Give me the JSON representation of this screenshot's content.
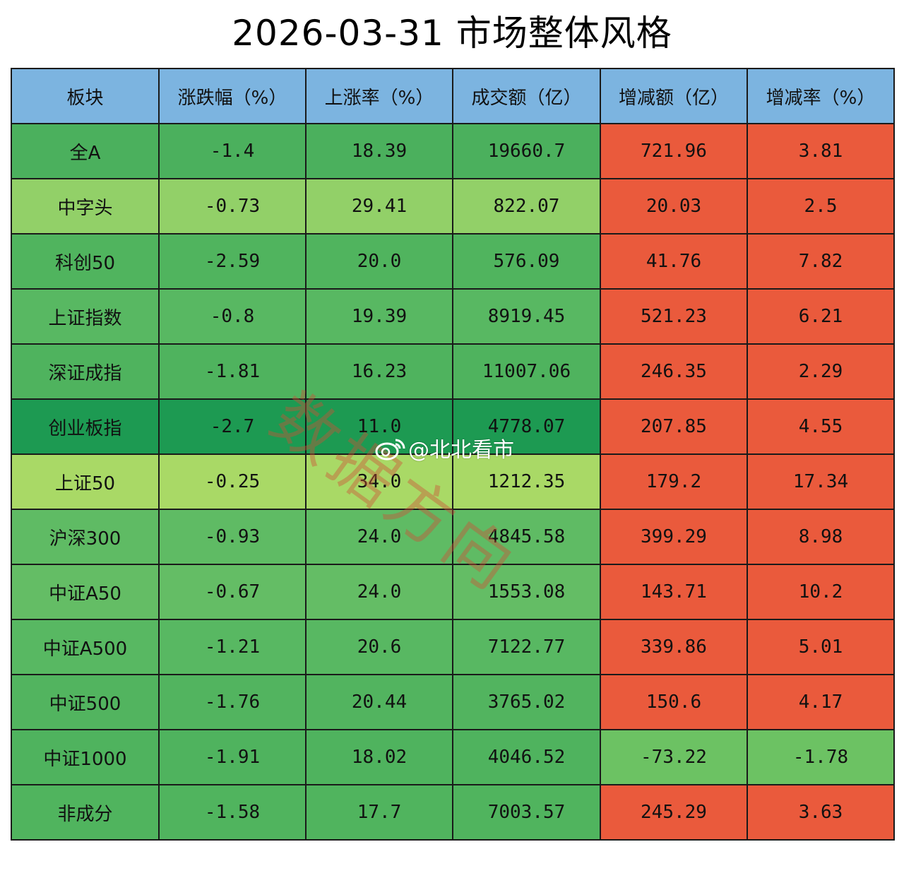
{
  "chart_data": {
    "type": "table",
    "title": "2026-03-31  市场整体风格",
    "columns": [
      "板块",
      "涨跌幅（%）",
      "上涨率（%）",
      "成交额（亿）",
      "增减额（亿）",
      "增减率（%）"
    ],
    "rows": [
      [
        "全A",
        "-1.4",
        "18.39",
        "19660.7",
        "721.96",
        "3.81"
      ],
      [
        "中字头",
        "-0.73",
        "29.41",
        "822.07",
        "20.03",
        "2.5"
      ],
      [
        "科创50",
        "-2.59",
        "20.0",
        "576.09",
        "41.76",
        "7.82"
      ],
      [
        "上证指数",
        "-0.8",
        "19.39",
        "8919.45",
        "521.23",
        "6.21"
      ],
      [
        "深证成指",
        "-1.81",
        "16.23",
        "11007.06",
        "246.35",
        "2.29"
      ],
      [
        "创业板指",
        "-2.7",
        "11.0",
        "4778.07",
        "207.85",
        "4.55"
      ],
      [
        "上证50",
        "-0.25",
        "34.0",
        "1212.35",
        "179.2",
        "17.34"
      ],
      [
        "沪深300",
        "-0.93",
        "24.0",
        "4845.58",
        "399.29",
        "8.98"
      ],
      [
        "中证A50",
        "-0.67",
        "24.0",
        "1553.08",
        "143.71",
        "10.2"
      ],
      [
        "中证A500",
        "-1.21",
        "20.6",
        "7122.77",
        "339.86",
        "5.01"
      ],
      [
        "中证500",
        "-1.76",
        "20.44",
        "3765.02",
        "150.6",
        "4.17"
      ],
      [
        "中证1000",
        "-1.91",
        "18.02",
        "4046.52",
        "-73.22",
        "-1.78"
      ],
      [
        "非成分",
        "-1.58",
        "17.7",
        "7003.57",
        "245.29",
        "3.63"
      ]
    ],
    "row_colors": [
      "#4bb05d",
      "#92d068",
      "#50b45e",
      "#58b862",
      "#4fb35e",
      "#1d9a52",
      "#a9d966",
      "#5fbb64",
      "#64bd65",
      "#58b862",
      "#52b45f",
      "#4fb35e",
      "#50b45e"
    ],
    "header_color": "#7cb4e0",
    "positive_change_color": "#ea5a3c",
    "negative_change_color": "#6cc263"
  },
  "watermark": "数据方向",
  "handle": "@北北看市",
  "handle_icon": "weibo-icon"
}
